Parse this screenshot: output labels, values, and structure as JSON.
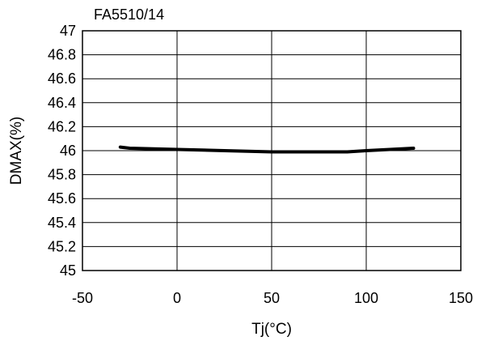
{
  "chart_data": {
    "type": "line",
    "title": "FA5510/14",
    "xlabel": "Tj(°C)",
    "ylabel": "DMAX(%)",
    "xlim": [
      -50,
      150
    ],
    "ylim": [
      45,
      47
    ],
    "x_ticks": [
      -50,
      0,
      50,
      100,
      150
    ],
    "y_ticks": [
      45,
      45.2,
      45.4,
      45.6,
      45.8,
      46,
      46.2,
      46.4,
      46.6,
      46.8,
      47
    ],
    "x_tick_labels": [
      "-50",
      "0",
      "50",
      "100",
      "150"
    ],
    "y_tick_labels": [
      "45",
      "45.2",
      "45.4",
      "45.6",
      "45.8",
      "46",
      "46.2",
      "46.4",
      "46.6",
      "46.8",
      "47"
    ],
    "grid": true,
    "series": [
      {
        "x": [
          -30,
          -25,
          0,
          25,
          50,
          75,
          90,
          100,
          125
        ],
        "y": [
          46.03,
          46.02,
          46.01,
          46.0,
          45.99,
          45.99,
          45.99,
          46.0,
          46.02
        ],
        "color": "#000000"
      }
    ]
  }
}
